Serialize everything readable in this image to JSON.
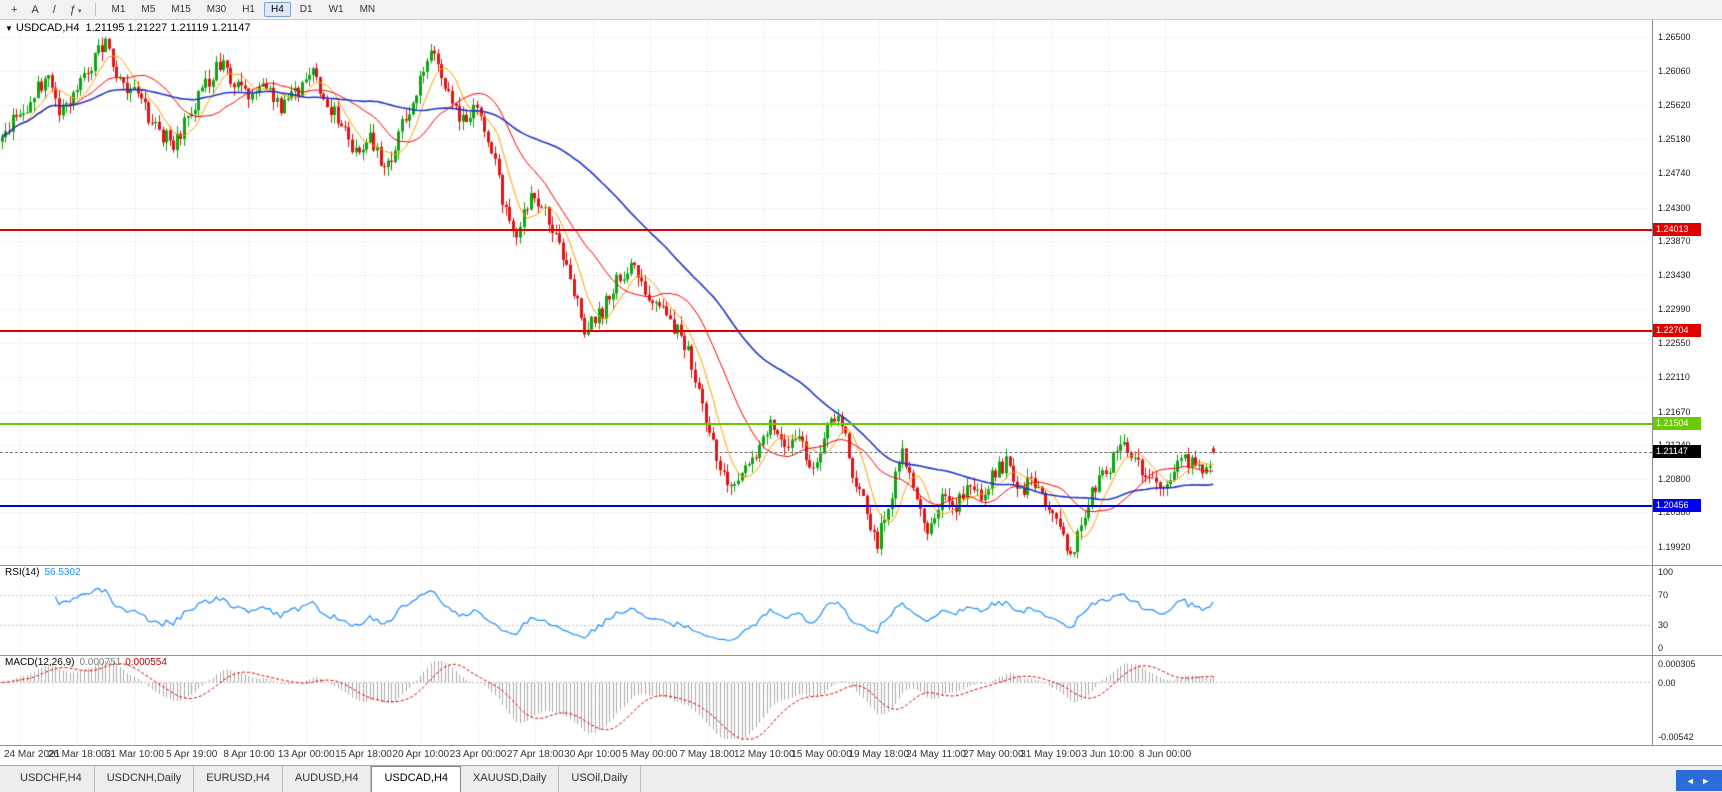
{
  "toolbar": {
    "left_buttons": [
      {
        "name": "crosshair",
        "glyph": "+"
      },
      {
        "name": "text",
        "glyph": "A"
      },
      {
        "name": "trendline",
        "glyph": "/"
      },
      {
        "name": "indicators",
        "glyph": "ƒ",
        "caret": "▾"
      }
    ],
    "timeframes": [
      "M1",
      "M5",
      "M15",
      "M30",
      "H1",
      "H4",
      "D1",
      "W1",
      "MN"
    ],
    "active_timeframe": "H4"
  },
  "chart": {
    "dropdown_glyph": "▼",
    "symbol_tf": "USDCAD,H4",
    "ohlc": "1.21195 1.21227 1.21119 1.21147"
  },
  "rsi": {
    "name": "RSI(14)",
    "value": "56.5302",
    "axis": [
      "100",
      "70",
      "30",
      "0"
    ]
  },
  "macd": {
    "name": "MACD(12,26,9)",
    "value_main": "0.000751",
    "value_signal": "0.000554",
    "axis_top": "0.000305",
    "axis_zero": "0.00",
    "axis_bottom": "-0.00542"
  },
  "tabs": {
    "items": [
      "USDCHF,H4",
      "USDCNH,Daily",
      "EURUSD,H4",
      "AUDUSD,H4",
      "USDCAD,H4",
      "XAUUSD,Daily",
      "USOil,Daily"
    ],
    "active_index": 4,
    "scroll_glyph": "◄ ►"
  },
  "chart_data": {
    "type": "candlestick",
    "symbol": "USDCAD",
    "timeframe": "H4",
    "open": 1.21195,
    "high": 1.21227,
    "low": 1.21119,
    "close": 1.21147,
    "y_range": {
      "top": 1.2672,
      "bottom": 1.1969
    },
    "price_axis": [
      "1.26500",
      "1.26060",
      "1.25620",
      "1.25180",
      "1.24740",
      "1.24300",
      "1.23870",
      "1.23430",
      "1.22990",
      "1.22550",
      "1.22110",
      "1.21670",
      "1.21240",
      "1.20800",
      "1.20380",
      "1.19920"
    ],
    "time_labels": [
      "24 Mar 2021",
      "26 Mar 18:00",
      "31 Mar 10:00",
      "5 Apr 19:00",
      "8 Apr 10:00",
      "13 Apr 00:00",
      "15 Apr 18:00",
      "20 Apr 10:00",
      "23 Apr 00:00",
      "27 Apr 18:00",
      "30 Apr 10:00",
      "5 May 00:00",
      "7 May 18:00",
      "12 May 10:00",
      "15 May 00:00",
      "19 May 18:00",
      "24 May 11:00",
      "27 May 00:00",
      "31 May 19:00",
      "3 Jun 10:00",
      "8 Jun 00:00"
    ],
    "levels": [
      {
        "name": "resistance-upper",
        "value": 1.24013,
        "label": "1.24013",
        "color": "#e00000"
      },
      {
        "name": "resistance-lower",
        "value": 1.22704,
        "label": "1.22704",
        "color": "#e00000"
      },
      {
        "name": "pivot-green",
        "value": 1.21504,
        "label": "1.21504",
        "color": "#66cc00"
      },
      {
        "name": "support-blue",
        "value": 1.20456,
        "label": "1.20456",
        "color": "#0000f0"
      }
    ],
    "current_price": {
      "value": 1.21147,
      "label": "1.21147",
      "color": "#000000"
    },
    "candle_count": 340,
    "bars_width": 1215,
    "grid_first_x": 20,
    "grid_step_x": 57.25,
    "price_path": [
      [
        0,
        1.2515
      ],
      [
        15,
        1.2545
      ],
      [
        30,
        1.2565
      ],
      [
        45,
        1.26
      ],
      [
        60,
        1.2555
      ],
      [
        75,
        1.258
      ],
      [
        90,
        1.261
      ],
      [
        105,
        1.2648
      ],
      [
        115,
        1.26
      ],
      [
        130,
        1.2585
      ],
      [
        145,
        1.2555
      ],
      [
        160,
        1.2525
      ],
      [
        175,
        1.2512
      ],
      [
        190,
        1.2555
      ],
      [
        205,
        1.2585
      ],
      [
        220,
        1.2618
      ],
      [
        235,
        1.259
      ],
      [
        250,
        1.257
      ],
      [
        265,
        1.2598
      ],
      [
        280,
        1.2555
      ],
      [
        295,
        1.2575
      ],
      [
        310,
        1.2608
      ],
      [
        325,
        1.256
      ],
      [
        340,
        1.2545
      ],
      [
        355,
        1.2498
      ],
      [
        370,
        1.252
      ],
      [
        385,
        1.2478
      ],
      [
        400,
        1.2528
      ],
      [
        415,
        1.258
      ],
      [
        432,
        1.2645
      ],
      [
        445,
        1.258
      ],
      [
        460,
        1.2545
      ],
      [
        475,
        1.2558
      ],
      [
        490,
        1.251
      ],
      [
        505,
        1.2428
      ],
      [
        515,
        1.2395
      ],
      [
        530,
        1.2442
      ],
      [
        545,
        1.2425
      ],
      [
        560,
        1.2385
      ],
      [
        575,
        1.231
      ],
      [
        585,
        1.2272
      ],
      [
        600,
        1.2292
      ],
      [
        615,
        1.2332
      ],
      [
        632,
        1.2362
      ],
      [
        648,
        1.2315
      ],
      [
        663,
        1.2292
      ],
      [
        678,
        1.2272
      ],
      [
        692,
        1.2228
      ],
      [
        705,
        1.2152
      ],
      [
        718,
        1.21
      ],
      [
        728,
        1.2068
      ],
      [
        740,
        1.2092
      ],
      [
        755,
        1.2112
      ],
      [
        770,
        1.2152
      ],
      [
        783,
        1.2122
      ],
      [
        797,
        1.2132
      ],
      [
        812,
        1.2092
      ],
      [
        827,
        1.2148
      ],
      [
        840,
        1.2162
      ],
      [
        853,
        1.2085
      ],
      [
        865,
        1.2042
      ],
      [
        877,
        1.1998
      ],
      [
        890,
        1.2058
      ],
      [
        903,
        1.2118
      ],
      [
        915,
        1.2062
      ],
      [
        928,
        1.2018
      ],
      [
        942,
        1.2062
      ],
      [
        955,
        1.2042
      ],
      [
        968,
        1.2072
      ],
      [
        980,
        1.2052
      ],
      [
        995,
        1.2088
      ],
      [
        1008,
        1.2105
      ],
      [
        1020,
        1.2062
      ],
      [
        1033,
        1.2082
      ],
      [
        1046,
        1.2052
      ],
      [
        1060,
        1.2012
      ],
      [
        1072,
        1.1987
      ],
      [
        1085,
        1.2042
      ],
      [
        1097,
        1.2072
      ],
      [
        1110,
        1.2098
      ],
      [
        1124,
        1.2128
      ],
      [
        1137,
        1.2102
      ],
      [
        1150,
        1.2082
      ],
      [
        1163,
        1.2062
      ],
      [
        1177,
        1.2092
      ],
      [
        1190,
        1.2108
      ],
      [
        1203,
        1.2082
      ],
      [
        1215,
        1.2115
      ]
    ],
    "ma": [
      {
        "period": 8,
        "color": "#ffa000"
      },
      {
        "period": 21,
        "color": "#ff0000"
      },
      {
        "period": 55,
        "color": "#2038c8"
      }
    ],
    "rsi_period": 14,
    "rsi_levels": [
      70,
      30
    ],
    "macd_params": {
      "fast": 12,
      "slow": 26,
      "signal": 9
    },
    "macd_range": {
      "top": 0.0022,
      "bottom": -0.0058
    },
    "colors": {
      "up": "#0fa50f",
      "down": "#e01414",
      "grid": "#dcdcdc",
      "rsi": "#1e90ff",
      "macd_hist": "#ababab",
      "macd_signal": "#e00000"
    }
  }
}
